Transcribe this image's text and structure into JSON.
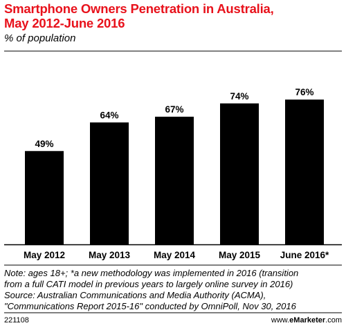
{
  "header": {
    "title_line1": "Smartphone Owners Penetration in Australia,",
    "title_line2": "May 2012-June 2016",
    "subtitle": "% of population"
  },
  "chart_data": {
    "type": "bar",
    "title": "Smartphone Owners Penetration in Australia, May 2012-June 2016",
    "subtitle": "% of population",
    "categories": [
      "May 2012",
      "May 2013",
      "May 2014",
      "May 2015",
      "June 2016*"
    ],
    "values": [
      49,
      64,
      67,
      74,
      76
    ],
    "data_labels": [
      "49%",
      "64%",
      "67%",
      "74%",
      "76%"
    ],
    "ylim": [
      0,
      100
    ],
    "grid": false,
    "bar_color": "#000000",
    "legend": "none"
  },
  "footnote": {
    "line1": "Note: ages 18+; *a new methodology was implemented in 2016 (transition",
    "line2": "from a full CATI model in previous years to largely online survey in 2016)",
    "line3": "Source: Australian Communications and Media Authority (ACMA),",
    "line4": "\"Communications Report 2015-16\" conducted by OmniPoll, Nov 30, 2016"
  },
  "footer": {
    "chart_id": "221108",
    "brand_prefix": "www.",
    "brand_strong": "eMarketer",
    "brand_suffix": ".com"
  },
  "colors": {
    "title": "#e8111b",
    "bars": "#000000",
    "rules": "#000000"
  }
}
